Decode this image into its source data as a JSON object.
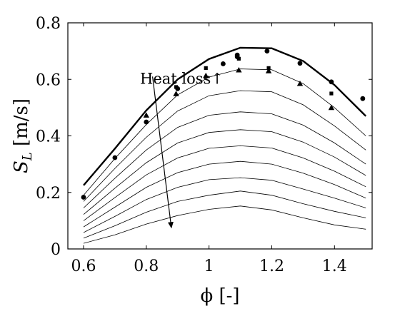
{
  "chart_data": {
    "type": "line",
    "xlabel": "ϕ [-]",
    "ylabel_main": "S",
    "ylabel_sub": "L",
    "ylabel_units": " [m/s]",
    "xlim": [
      0.55,
      1.52
    ],
    "ylim": [
      0,
      0.8
    ],
    "xticks": [
      0.6,
      0.8,
      1.0,
      1.2,
      1.4
    ],
    "xtick_labels": [
      "0.6",
      "0.8",
      "1",
      "1.2",
      "1.4"
    ],
    "yticks": [
      0,
      0.2,
      0.4,
      0.6,
      0.8
    ],
    "ytick_labels": [
      "0",
      "0.2",
      "0.4",
      "0.6",
      "0.8"
    ],
    "grid": false,
    "x": [
      0.6,
      0.7,
      0.8,
      0.9,
      1.0,
      1.1,
      1.2,
      1.3,
      1.4,
      1.5
    ],
    "main_line": [
      0.225,
      0.355,
      0.49,
      0.6,
      0.672,
      0.712,
      0.71,
      0.665,
      0.58,
      0.47
    ],
    "heat_loss_lines": [
      [
        0.19,
        0.32,
        0.44,
        0.545,
        0.608,
        0.637,
        0.634,
        0.585,
        0.5,
        0.4
      ],
      [
        0.168,
        0.285,
        0.395,
        0.488,
        0.542,
        0.56,
        0.556,
        0.51,
        0.435,
        0.35
      ],
      [
        0.145,
        0.25,
        0.35,
        0.43,
        0.473,
        0.485,
        0.478,
        0.438,
        0.375,
        0.3
      ],
      [
        0.122,
        0.215,
        0.305,
        0.375,
        0.412,
        0.422,
        0.415,
        0.378,
        0.325,
        0.26
      ],
      [
        0.1,
        0.182,
        0.262,
        0.322,
        0.356,
        0.365,
        0.357,
        0.322,
        0.275,
        0.22
      ],
      [
        0.078,
        0.148,
        0.218,
        0.27,
        0.3,
        0.31,
        0.3,
        0.268,
        0.228,
        0.18
      ],
      [
        0.058,
        0.115,
        0.175,
        0.218,
        0.245,
        0.252,
        0.243,
        0.212,
        0.18,
        0.145
      ],
      [
        0.038,
        0.082,
        0.13,
        0.168,
        0.19,
        0.205,
        0.19,
        0.16,
        0.133,
        0.11
      ],
      [
        0.02,
        0.05,
        0.088,
        0.118,
        0.14,
        0.152,
        0.138,
        0.11,
        0.085,
        0.07
      ]
    ],
    "marker_series": [
      {
        "marker": "circle",
        "points": [
          [
            0.6,
            0.183
          ],
          [
            0.7,
            0.323
          ],
          [
            0.8,
            0.449
          ],
          [
            0.9,
            0.567
          ],
          [
            1.045,
            0.655
          ],
          [
            1.09,
            0.68
          ],
          [
            1.09,
            0.686
          ],
          [
            1.185,
            0.7
          ],
          [
            1.29,
            0.657
          ],
          [
            1.39,
            0.591
          ],
          [
            1.49,
            0.532
          ]
        ]
      },
      {
        "marker": "square",
        "points": [
          [
            0.895,
            0.573
          ],
          [
            0.99,
            0.64
          ],
          [
            1.095,
            0.673
          ],
          [
            1.19,
            0.64
          ],
          [
            1.39,
            0.55
          ]
        ]
      },
      {
        "marker": "triangle",
        "points": [
          [
            0.8,
            0.473
          ],
          [
            0.895,
            0.549
          ],
          [
            0.99,
            0.613
          ],
          [
            1.095,
            0.633
          ],
          [
            1.19,
            0.63
          ],
          [
            1.29,
            0.585
          ],
          [
            1.39,
            0.5
          ]
        ]
      }
    ],
    "annotation": {
      "text": "Heat loss↑",
      "x": 0.78,
      "y": 0.605,
      "arrow_from": [
        0.82,
        0.61
      ],
      "arrow_to": [
        0.88,
        0.075
      ]
    }
  }
}
